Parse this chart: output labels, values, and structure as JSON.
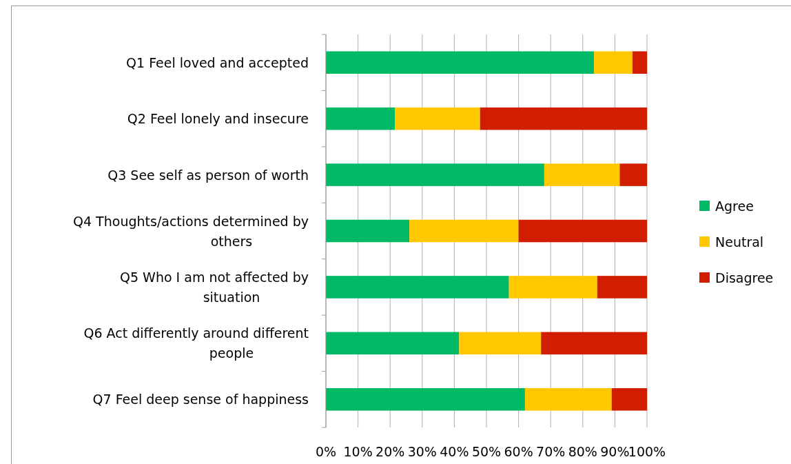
{
  "chart_data": {
    "type": "bar",
    "orientation": "horizontal",
    "stacked": true,
    "categories": [
      "Q1 Feel loved and accepted",
      "Q2 Feel lonely and insecure",
      "Q3 See self as person of worth",
      "Q4 Thoughts/actions determined by others",
      "Q5 Who I am not affected by situation",
      "Q6 Act differently around different people",
      "Q7 Feel deep sense of happiness"
    ],
    "series": [
      {
        "name": "Agree",
        "color": "#00b966",
        "values": [
          83.5,
          21.5,
          68,
          26,
          57,
          41.5,
          62
        ]
      },
      {
        "name": "Neutral",
        "color": "#ffc800",
        "values": [
          12,
          26.5,
          23.5,
          34,
          27.5,
          25.5,
          27
        ]
      },
      {
        "name": "Disagree",
        "color": "#d21e00",
        "values": [
          4.5,
          52,
          8.5,
          40,
          15.5,
          33,
          11
        ]
      }
    ],
    "xlim": [
      0,
      100
    ],
    "xticks": [
      {
        "value": 0,
        "label": "0%"
      },
      {
        "value": 10,
        "label": "10%"
      },
      {
        "value": 20,
        "label": "20%"
      },
      {
        "value": 30,
        "label": "30%"
      },
      {
        "value": 40,
        "label": "40%"
      },
      {
        "value": 50,
        "label": "50%"
      },
      {
        "value": 60,
        "label": "60%"
      },
      {
        "value": 70,
        "label": "70%"
      },
      {
        "value": 80,
        "label": "80%"
      },
      {
        "value": 90,
        "label": "90%"
      },
      {
        "value": 100,
        "label": "100%"
      }
    ],
    "grid": "x",
    "legend": "right"
  }
}
